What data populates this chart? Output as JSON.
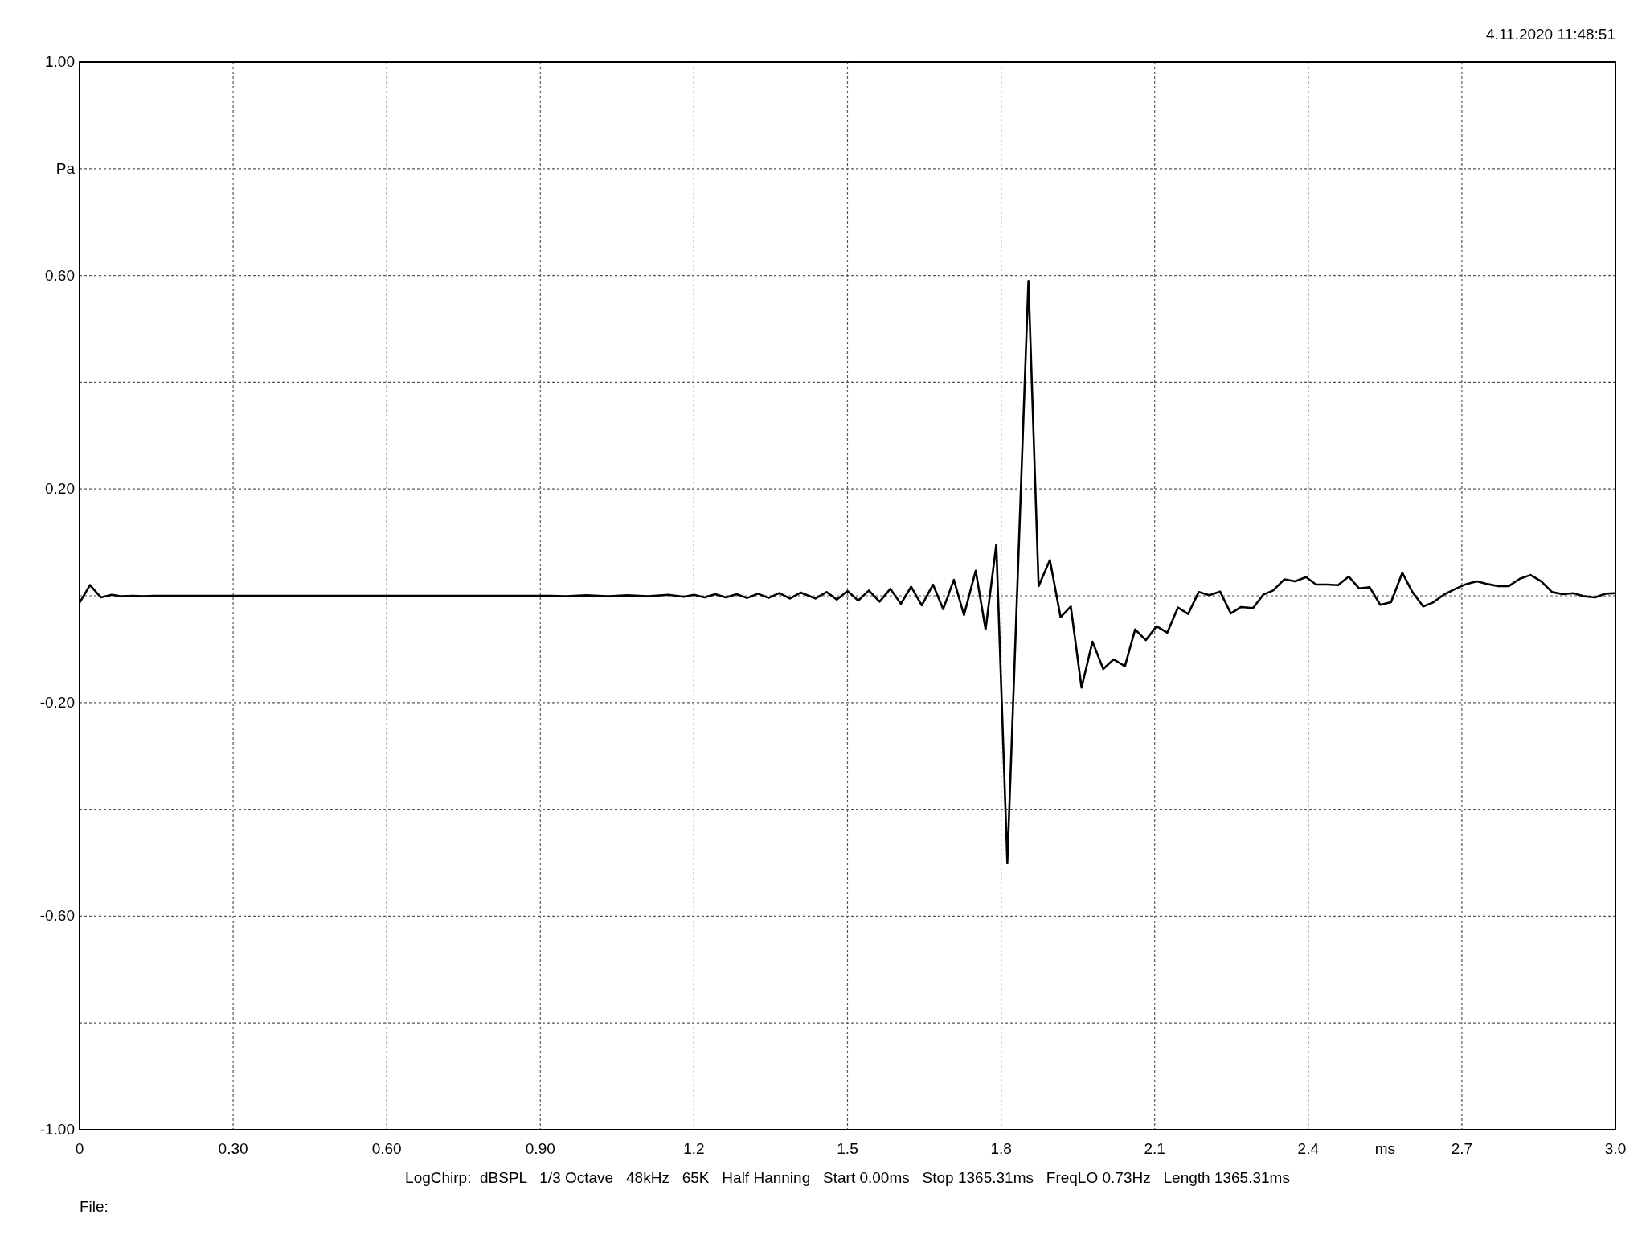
{
  "chart_data": {
    "type": "line",
    "xlabel": "ms",
    "ylabel": "Pa",
    "annotations": [
      "4.11.2020 11:48:51",
      "LogChirp:  dBSPL   1/3 Octave   48kHz   65K   Half Hanning   Start 0.00ms   Stop 1365.31ms   FreqLO 0.73Hz   Length 1365.31ms",
      "File:"
    ],
    "xlim": [
      0,
      3
    ],
    "ylim": [
      -1,
      1
    ],
    "xticks": [
      0,
      {
        "value": 0.3,
        "label": "0.30"
      },
      {
        "value": 0.6,
        "label": "0.60"
      },
      {
        "value": 0.9,
        "label": "0.90"
      },
      1.2,
      1.5,
      1.8,
      2.1,
      2.4,
      2.7,
      {
        "value": 3,
        "label": "3.0"
      }
    ],
    "yticks": [
      {
        "value": -1,
        "label": "-1.00"
      },
      {
        "value": -0.8,
        "label": null
      },
      {
        "value": -0.6,
        "label": "-0.60"
      },
      {
        "value": -0.4,
        "label": null
      },
      {
        "value": -0.2,
        "label": "-0.20"
      },
      {
        "value": 0,
        "label": null
      },
      {
        "value": 0.2,
        "label": "0.20"
      },
      {
        "value": 0.4,
        "label": null
      },
      {
        "value": 0.6,
        "label": "0.60"
      },
      {
        "value": 0.8,
        "label": null
      },
      {
        "value": 1,
        "label": "1.00"
      }
    ],
    "grid": true,
    "marker": "none",
    "line_style": "solid",
    "series": [
      {
        "color": "#000000",
        "x": [
          0,
          0.0203,
          0.0416,
          0.0628,
          0.083,
          0.104,
          0.125,
          0.146,
          0.2,
          0.5,
          0.92,
          0.95,
          0.99,
          1.03,
          1.07,
          1.11,
          1.15,
          1.18,
          1.2,
          1.2208,
          1.2417,
          1.2625,
          1.2833,
          1.3042,
          1.325,
          1.3458,
          1.3667,
          1.3875,
          1.4083,
          1.4374,
          1.4593,
          1.4791,
          1.5,
          1.5209,
          1.5417,
          1.5626,
          1.5835,
          1.6043,
          1.6242,
          1.645,
          1.667,
          1.6868,
          1.7077,
          1.7275,
          1.7504,
          1.7697,
          1.7906,
          1.8122,
          1.8534,
          1.8733,
          1.8953,
          1.9162,
          1.9361,
          1.9571,
          1.9785,
          1.9995,
          2.0199,
          2.0419,
          2.0618,
          2.0827,
          2.1037,
          2.1246,
          2.1455,
          2.1654,
          2.1859,
          2.2068,
          2.2277,
          2.2487,
          2.2686,
          2.2921,
          2.312,
          2.3314,
          2.3534,
          2.3743,
          2.3958,
          2.4152,
          2.4361,
          2.4581,
          2.4791,
          2.499,
          2.5199,
          2.5406,
          2.5616,
          2.5836,
          2.6035,
          2.6245,
          2.6428,
          2.6664,
          2.6874,
          2.7084,
          2.7294,
          2.7503,
          2.7713,
          2.7912,
          2.8133,
          2.8342,
          2.8552,
          2.8762,
          2.8972,
          2.9182,
          2.9391,
          2.9601,
          2.9811,
          3
        ],
        "values": [
          -0.013,
          0.02,
          -0.003,
          0.002,
          -0.001,
          0,
          -0.001,
          0,
          0,
          0,
          0,
          -0.001,
          0.001,
          -0.001,
          0.001,
          -0.001,
          0.002,
          -0.002,
          0.002,
          -0.003,
          0.003,
          -0.003,
          0.003,
          -0.004,
          0.004,
          -0.004,
          0.005,
          -0.005,
          0.006,
          -0.005,
          0.007,
          -0.007,
          0.009,
          -0.009,
          0.01,
          -0.011,
          0.013,
          -0.015,
          0.017,
          -0.018,
          0.021,
          -0.025,
          0.03,
          -0.036,
          0.047,
          -0.063,
          0.096,
          -0.5,
          0.59,
          0.018,
          0.067,
          -0.04,
          -0.02,
          -0.172,
          -0.086,
          -0.137,
          -0.119,
          -0.132,
          -0.063,
          -0.083,
          -0.057,
          -0.069,
          -0.022,
          -0.034,
          0.007,
          0.001,
          0.008,
          -0.033,
          -0.021,
          -0.023,
          0.002,
          0.01,
          0.031,
          0.027,
          0.035,
          0.021,
          0.021,
          0.02,
          0.036,
          0.014,
          0.016,
          -0.017,
          -0.012,
          0.043,
          0.007,
          -0.02,
          -0.013,
          0.003,
          0.013,
          0.022,
          0.027,
          0.022,
          0.018,
          0.018,
          0.032,
          0.039,
          0.027,
          0.007,
          0.003,
          0.005,
          -0.001,
          -0.003,
          0.004,
          0.005
        ]
      }
    ]
  }
}
